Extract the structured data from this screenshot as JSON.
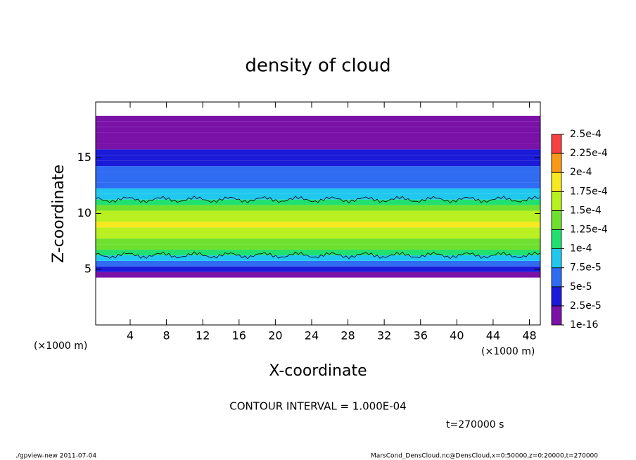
{
  "chart_data": {
    "type": "contour",
    "title": "density of cloud",
    "x_label": "X-coordinate",
    "y_label": "Z-coordinate",
    "x_unit_label": "(×1000 m)",
    "x_unit_label_right": "(×1000 m)",
    "xlim": [
      0.2,
      49.2
    ],
    "ylim": [
      0,
      20
    ],
    "xticks": [
      4,
      8,
      12,
      16,
      20,
      24,
      28,
      32,
      36,
      40,
      44,
      48
    ],
    "yticks": [
      5,
      10,
      15
    ],
    "z": [
      4.5,
      5,
      5.5,
      6,
      6.5,
      7,
      7.5,
      8,
      8.5,
      9,
      9.5,
      10,
      10.5,
      11,
      11.5,
      12,
      12.5,
      13,
      13.5,
      14,
      14.5,
      15,
      15.5,
      16,
      16.5,
      17,
      17.5,
      18,
      18.5
    ],
    "values": [
      1e-05,
      3e-05,
      6e-05,
      9e-05,
      0.00011,
      0.00013,
      0.000145,
      0.00016,
      0.00017,
      0.000175,
      0.00017,
      0.000155,
      0.000135,
      0.00011,
      9e-05,
      8e-05,
      7e-05,
      6e-05,
      5.5e-05,
      5e-05,
      4.5e-05,
      4e-05,
      3e-05,
      2e-05,
      1.5e-05,
      1e-05,
      8e-06,
      5e-06,
      2e-06
    ],
    "contour_level": 0.0001,
    "colorbar": {
      "levels": [
        {
          "value": 1e-16,
          "label": "1e-16"
        },
        {
          "value": 2.5e-05,
          "label": "2.5e-5"
        },
        {
          "value": 5e-05,
          "label": "5e-5"
        },
        {
          "value": 7.5e-05,
          "label": "7.5e-5"
        },
        {
          "value": 0.0001,
          "label": "1e-4"
        },
        {
          "value": 0.000125,
          "label": "1.25e-4"
        },
        {
          "value": 0.00015,
          "label": "1.5e-4"
        },
        {
          "value": 0.000175,
          "label": "1.75e-4"
        },
        {
          "value": 0.0002,
          "label": "2e-4"
        },
        {
          "value": 0.000225,
          "label": "2.25e-4"
        },
        {
          "value": 0.00025,
          "label": "2.5e-4"
        }
      ],
      "colors": [
        "#7a12a8",
        "#1a1ad8",
        "#2f6cf2",
        "#20c8f0",
        "#20e070",
        "#70e030",
        "#b8f020",
        "#f8e820",
        "#f89a18",
        "#f84040"
      ]
    },
    "contour_note": "CONTOUR INTERVAL = 1.000E-04",
    "time_note": "t=270000 s",
    "footer_left": "./gpview-new  2011-07-04",
    "footer_right": "MarsCond_DensCloud.nc@DensCloud,x=0:50000,z=0:20000,t=270000"
  }
}
